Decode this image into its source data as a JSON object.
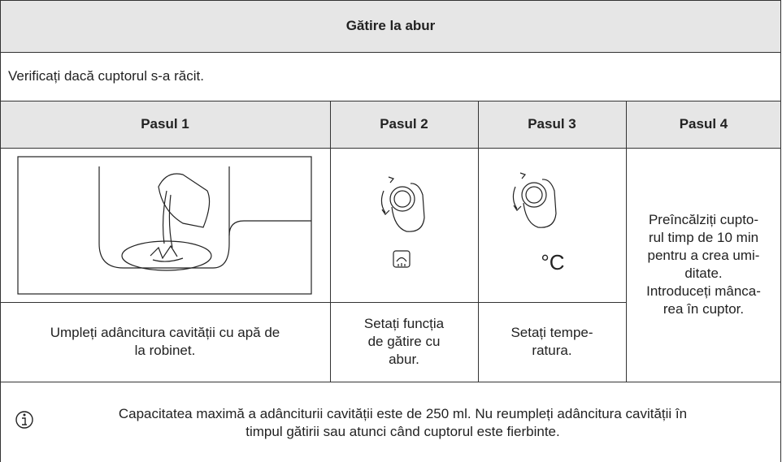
{
  "header": {
    "title": "Gătire la abur"
  },
  "intro": "Verificați dacă cuptorul s-a răcit.",
  "steps": [
    {
      "heading": "Pasul 1",
      "lines": [
        "Umpleți adâncitura cavității cu apă de",
        "la robinet."
      ]
    },
    {
      "heading": "Pasul 2",
      "lines": [
        "Setați funcția",
        "de gătire cu",
        "abur."
      ]
    },
    {
      "heading": "Pasul 3",
      "symbol": "°C",
      "lines": [
        "Setați tempe-",
        "ratura."
      ]
    },
    {
      "heading": "Pasul 4",
      "lines": [
        "Preîncălziți cupto-",
        "rul timp de 10 min",
        "pentru a crea umi-",
        "ditate.",
        "Introduceți mânca-",
        "rea în cuptor."
      ]
    }
  ],
  "note": {
    "lines": [
      "Capacitatea maximă a adânciturii cavității este de 250 ml. Nu reumpleți adâncitura cavității în",
      "timpul gătirii sau atunci când cuptorul este fierbinte."
    ]
  }
}
